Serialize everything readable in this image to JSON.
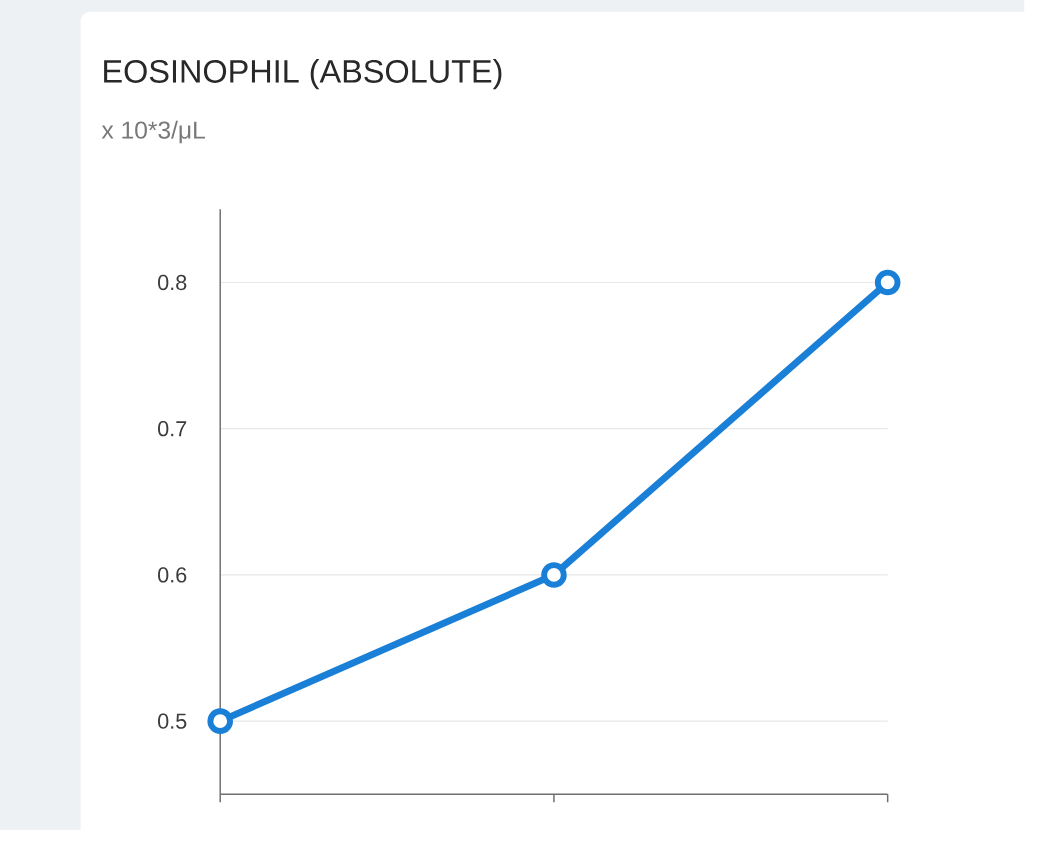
{
  "chart_data": {
    "type": "line",
    "title": "EOSINOPHIL (ABSOLUTE)",
    "subtitle": "x 10*3/μL",
    "categories": [
      null,
      null,
      null
    ],
    "series": [
      {
        "color": "#1a7fd6",
        "values": [
          0.5,
          0.6,
          0.8
        ]
      }
    ],
    "ylim": [
      0.45,
      0.85
    ],
    "yticks": [
      0.5,
      0.6,
      0.7,
      0.8
    ],
    "grid": "y",
    "marker": "circle",
    "tick_labels": "y"
  }
}
